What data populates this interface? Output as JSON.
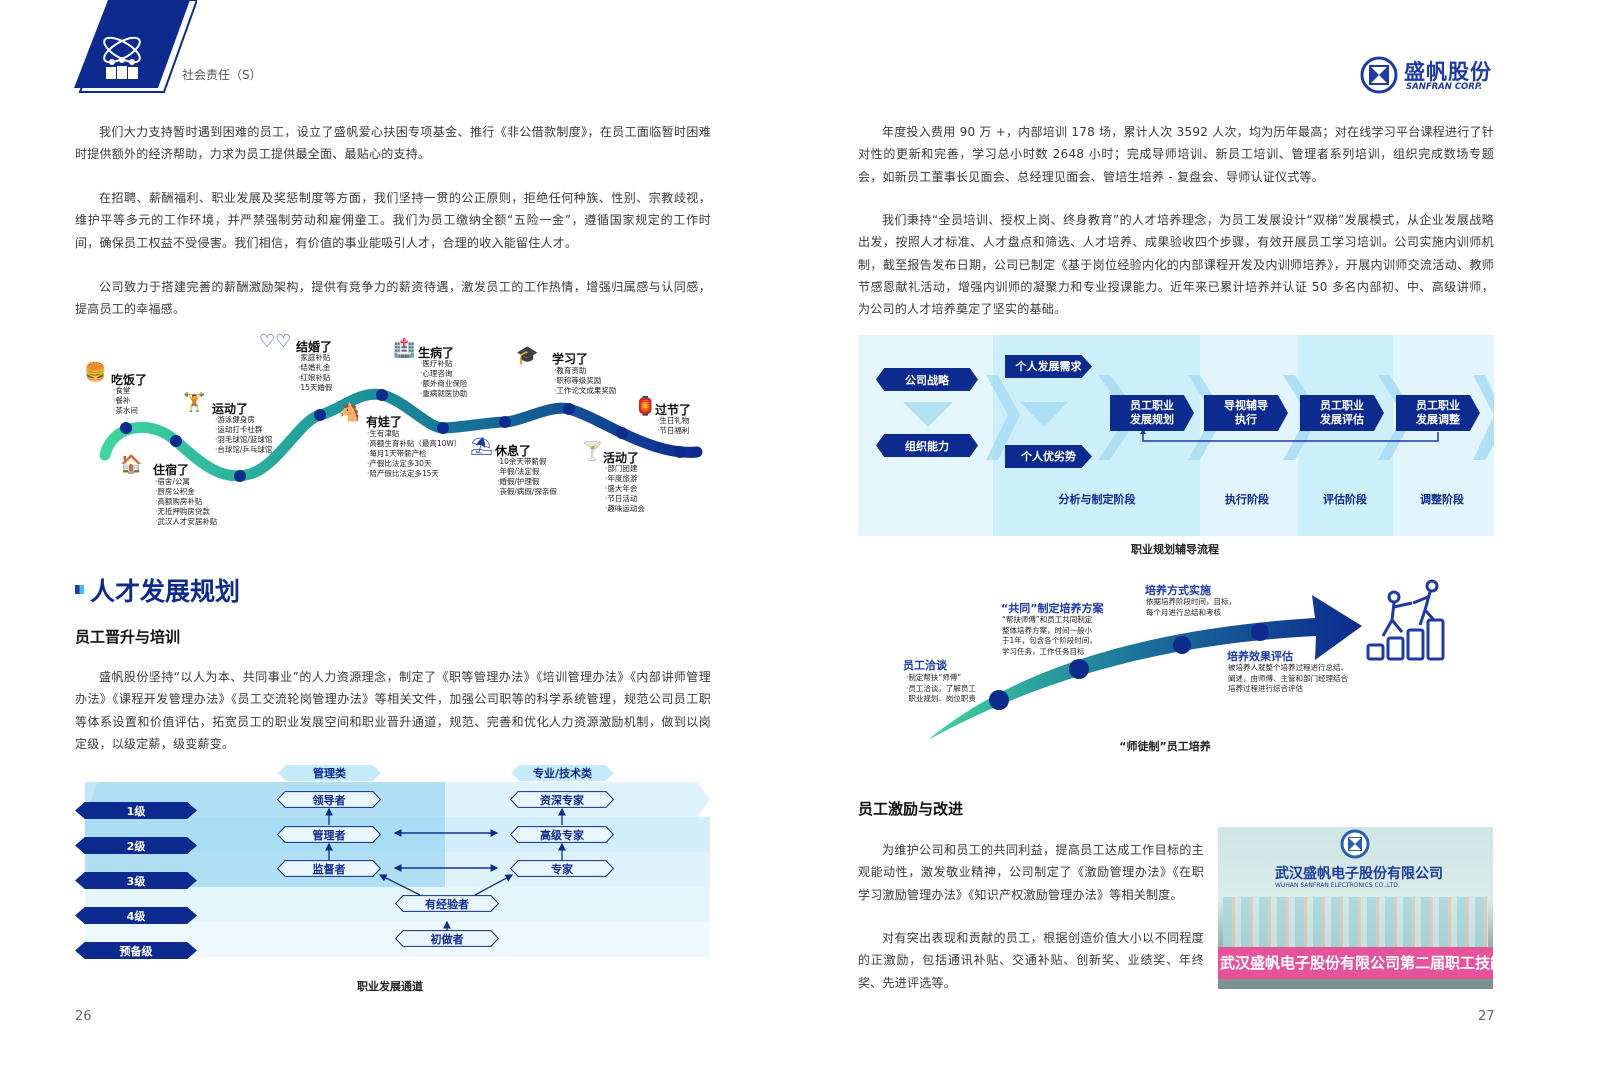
{
  "header": {
    "section": "社会责任（S）",
    "brand_cn": "盛帆股份",
    "brand_en": "SANFRAN CORP.",
    "accent": "#0d2a8f"
  },
  "left_page": {
    "paragraphs": [
      "我们大力支持暂时遇到困难的员工，设立了盛帆爱心扶困专项基金、推行《非公借款制度》，在员工面临暂时困难时提供额外的经济帮助，力求为员工提供最全面、最贴心的支持。",
      "在招聘、薪酬福利、职业发展及奖惩制度等方面，我们坚持一贯的公正原则，拒绝任何种族、性别、宗教歧视，维护平等多元的工作环境，并严禁强制劳动和雇佣童工。我们为员工缴纳全额“五险一金”，遵循国家规定的工作时间，确保员工权益不受侵害。我们相信，有价值的事业能吸引人才，合理的收入能留住人才。",
      "公司致力于搭建完善的薪酬激励架构，提供有竞争力的薪资待遇，激发员工的工作热情，增强归属感与认同感，提高员工的幸福感。"
    ],
    "benefits": [
      {
        "title": "吃饭了",
        "icon": "burger-icon",
        "items": [
          "·食堂",
          "·餐补",
          "·茶水间"
        ]
      },
      {
        "title": "住宿了",
        "icon": "house-icon",
        "items": [
          "·宿舍/公寓",
          "·厨房公积金",
          "·高额购房补贴",
          "·无抵押购房贷款",
          "·武汉人才安居补贴"
        ]
      },
      {
        "title": "运动了",
        "icon": "dumbbell-icon",
        "items": [
          "·游泳健身房",
          "·运动打卡社群",
          "·羽毛球馆/篮球馆",
          "·台球馆/乒乓球馆"
        ]
      },
      {
        "title": "结婚了",
        "icon": "hearts-icon",
        "items": [
          "·家庭补贴",
          "·结婚礼金",
          "·红娘补贴",
          "·15天婚假"
        ]
      },
      {
        "title": "有娃了",
        "icon": "rocking-horse-icon",
        "items": [
          "·生有津贴",
          "·高额生育补贴（最高10W）",
          "·每月1天带薪产检",
          "·产假比法定多30天",
          "·陪产假比法定多15天"
        ]
      },
      {
        "title": "生病了",
        "icon": "hospital-icon",
        "items": [
          "·医疗补贴",
          "·心理咨询",
          "·额外商业保险",
          "·重病就医协助"
        ]
      },
      {
        "title": "休息了",
        "icon": "beach-icon",
        "items": [
          "·10余天带薪假",
          "·年假/法定假",
          "·婚假/护理假",
          "·丧假/病假/探亲假"
        ]
      },
      {
        "title": "学习了",
        "icon": "graduation-cap-icon",
        "items": [
          "·教育资助",
          "·职称等级奖励",
          "·工作论文成果奖励"
        ]
      },
      {
        "title": "活动了",
        "icon": "cocktail-icon",
        "items": [
          "·部门团建",
          "·年度旅游",
          "·盛大年会",
          "·节日活动",
          "·趣味运动会"
        ]
      },
      {
        "title": "过节了",
        "icon": "lantern-icon",
        "items": [
          "·生日礼物",
          "·节日福利"
        ]
      }
    ],
    "section_title": "人才发展规划",
    "subsection_title": "员工晋升与培训",
    "paragraph4": "盛帆股份坚持“以人为本、共同事业”的人力资源理念，制定了《职等管理办法》《培训管理办法》《内部讲师管理办法》《课程开发管理办法》《员工交流轮岗管理办法》等相关文件，加强公司职等的科学系统管理，规范公司员工职等体系设置和价值评估，拓宽员工的职业发展空间和职业晋升通道，规范、完善和优化人力资源激励机制，做到以岗定级，以级定薪，级变薪变。",
    "career_path": {
      "levels": [
        "1级",
        "2级",
        "3级",
        "4级",
        "预备级"
      ],
      "track_management": "管理类",
      "track_technical": "专业/技术类",
      "management_roles": [
        "领导者",
        "管理者",
        "监督者"
      ],
      "technical_roles": [
        "资深专家",
        "高级专家",
        "专家"
      ],
      "shared_roles": [
        "有经验者",
        "初做者"
      ],
      "caption": "职业发展通道"
    },
    "page_number": "26"
  },
  "right_page": {
    "paragraphs": [
      "年度投入费用 90 万 +，内部培训 178 场，累计人次 3592 人次，均为历年最高；对在线学习平台课程进行了针对性的更新和完善，学习总小时数 2648 小时；完成导师培训、新员工培训、管理者系列培训，组织完成数场专题会，如新员工董事长见面会、总经理见面会、管培生培养 - 复盘会、导师认证仪式等。",
      "我们秉持“全员培训、授权上岗、终身教育”的人才培养理念，为员工发展设计“双梯”发展模式，从企业发展战略出发，按照人才标准、人才盘点和筛选、人才培养、成果验收四个步骤，有效开展员工学习培训。公司实施内训师机制，截至报告发布日期，公司已制定《基于岗位经验内化的内部课程开发及内训师培养》，开展内训师交流活动、教师节感恩献礼活动，增强内训师的凝聚力和专业授课能力。近年来已累计培养并认证 50 多名内部初、中、高级讲师，为公司的人才培养奠定了坚实的基础。"
    ],
    "career_flow": {
      "inputs": [
        "公司战略",
        "组织能力"
      ],
      "personal": [
        "个人发展需求",
        "个人优劣势"
      ],
      "steps": [
        "员工职业\n发展规划",
        "导视辅导\n执行",
        "员工职业\n发展评估",
        "员工职业\n发展调整"
      ],
      "stages": [
        "分析与制定阶段",
        "执行阶段",
        "评估阶段",
        "调整阶段"
      ],
      "caption": "职业规划辅导流程"
    },
    "mentorship": {
      "steps": [
        {
          "title": "员工洽谈",
          "lines": [
            "·制定帮扶“师傅”",
            "·员工洽谈，了解员工",
            " 职业规划、岗位职责"
          ]
        },
        {
          "title": "“共同”制定培养方案",
          "lines": [
            "“帮扶师傅”和员工共同制定",
            "整体培养方案，时间一般小",
            "于1年，包含各个阶段时间，",
            "学习任务，工作任务目标"
          ]
        },
        {
          "title": "培养方式实施",
          "lines": [
            "依据培养阶段时间，目标，",
            "每个月进行总结和考核"
          ]
        },
        {
          "title": "培养效果评估",
          "lines": [
            "被培养人就整个培养过程进行总结、",
            "阐述，由师傅、主管和部门经理结合",
            "培养过程进行综合评估"
          ]
        }
      ],
      "caption": "“师徒制”员工培养"
    },
    "subsection_title": "员工激励与改进",
    "paragraphs2": [
      "为维护公司和员工的共同利益，提高员工达成工作目标的主观能动性，激发敬业精神，公司制定了《激励管理办法》《在职学习激励管理办法》《知识产权激励管理办法》等相关制度。",
      "对有突出表现和贡献的员工，根据创造价值大小以不同程度的正激励，包括通讯补贴、交通补贴、创新奖、业绩奖、年终奖、先进评选等。"
    ],
    "photo": {
      "wall_cn": "武汉盛帆电子股份有限公司",
      "wall_en": "WUHAN SANFRAN ELECTRONICS CO.,LTD.",
      "banner": "武汉盛帆电子股份有限公司第二届职工技能大赛"
    },
    "page_number": "27"
  }
}
